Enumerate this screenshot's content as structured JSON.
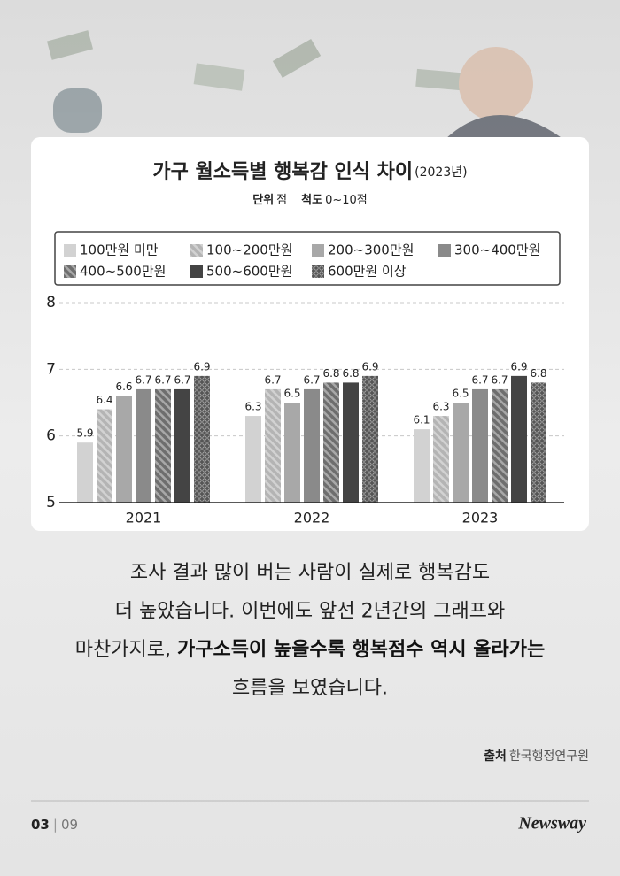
{
  "chart_data": {
    "type": "bar",
    "title": "가구 월소득별 행복감 인식 차이",
    "title_note": "(2023년)",
    "unit_label": "단위",
    "unit": "점",
    "scale_label": "척도",
    "scale": "0~10점",
    "categories": [
      "2021",
      "2022",
      "2023"
    ],
    "series": [
      {
        "name": "100만원 미만",
        "color": "#d2d2d2",
        "fill_style": "solid",
        "values": [
          5.9,
          6.3,
          6.1
        ]
      },
      {
        "name": "100~200만원",
        "color": "#b4b4b4",
        "fill_style": "hatch",
        "values": [
          6.4,
          6.7,
          6.3
        ]
      },
      {
        "name": "200~300만원",
        "color": "#a8a8a8",
        "fill_style": "solid",
        "values": [
          6.6,
          6.5,
          6.5
        ]
      },
      {
        "name": "300~400만원",
        "color": "#8a8a8a",
        "fill_style": "solid",
        "values": [
          6.7,
          6.7,
          6.7
        ]
      },
      {
        "name": "400~500만원",
        "color": "#6e6e6e",
        "fill_style": "hatch",
        "values": [
          6.7,
          6.8,
          6.7
        ]
      },
      {
        "name": "500~600만원",
        "color": "#444444",
        "fill_style": "solid",
        "values": [
          6.7,
          6.8,
          6.9
        ]
      },
      {
        "name": "600만원 이상",
        "color": "#555555",
        "fill_style": "dots",
        "values": [
          6.9,
          6.9,
          6.8
        ]
      }
    ],
    "ylim": [
      5,
      8
    ],
    "yticks": [
      5,
      6,
      7,
      8
    ],
    "grid": true
  },
  "body": {
    "lines": [
      [
        "조사 결과 많이 버는 사람이 실제로 행복감도"
      ],
      [
        "더 높았습니다. 이번에도 앞선 2년간의 그래프와"
      ],
      [
        "마찬가지로, ",
        "가구소득이 높을수록 행복점수 역시 올라가는"
      ],
      [
        "흐름을 보였습니다."
      ]
    ]
  },
  "source": {
    "label": "출처",
    "text": "한국행정연구원"
  },
  "footer": {
    "page": "03",
    "total": "09",
    "logo": "Newsway"
  }
}
